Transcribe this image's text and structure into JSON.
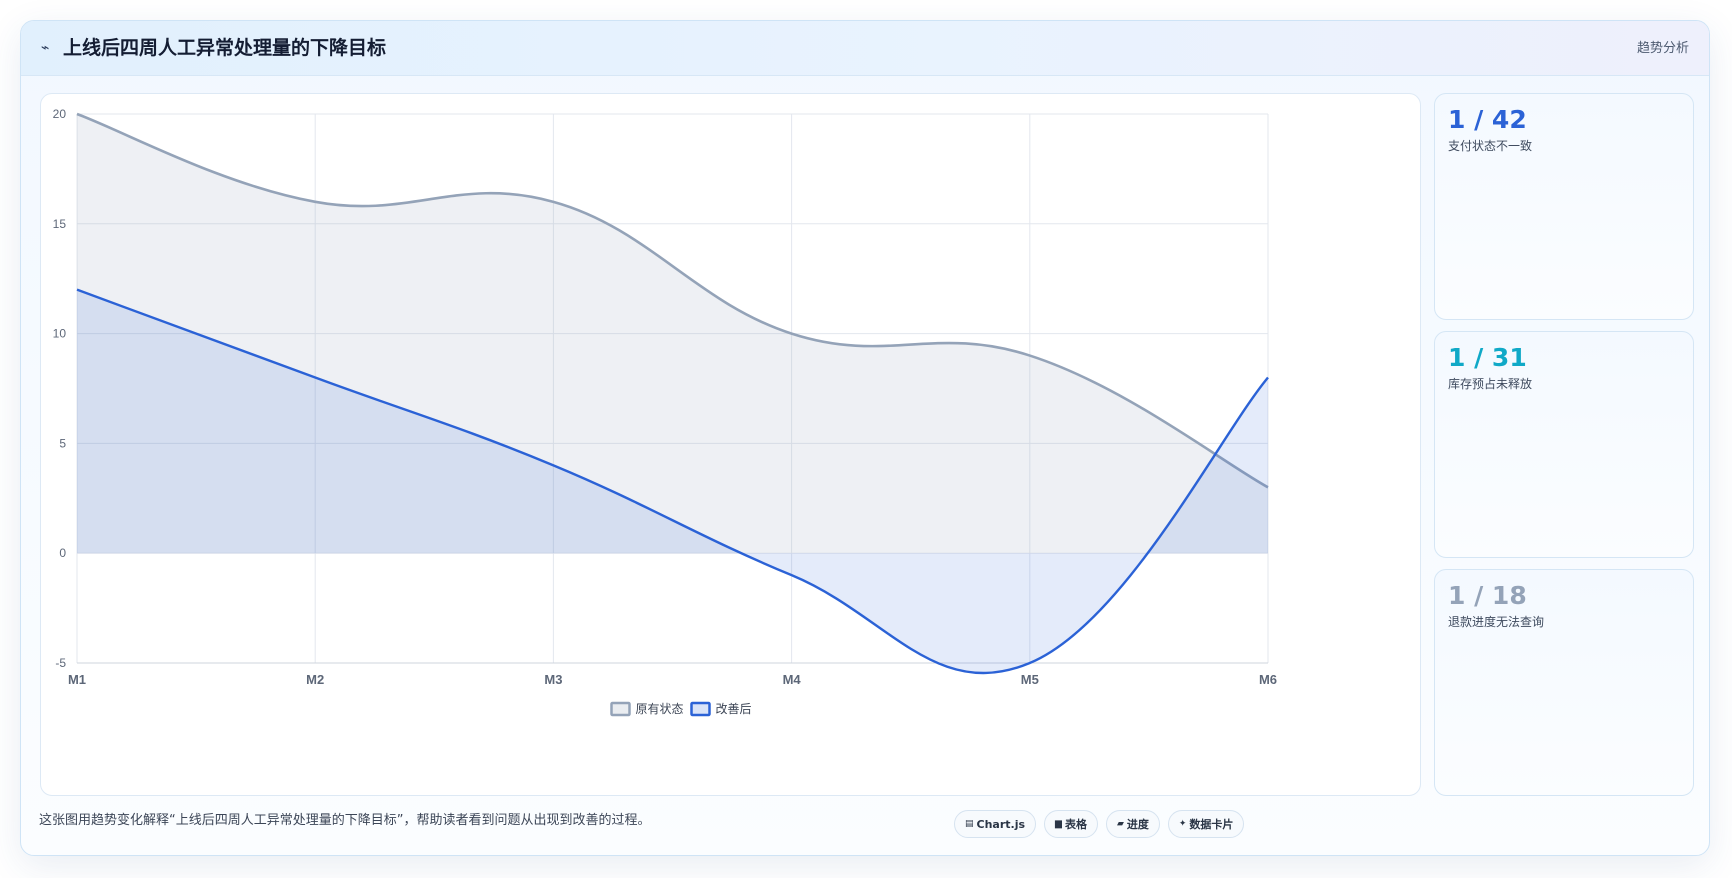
{
  "header": {
    "icon": "wave-icon",
    "title": "上线后四周人工异常处理量的下降目标",
    "tag": "趋势分析"
  },
  "chart_data": {
    "type": "area",
    "categories": [
      "M1",
      "M2",
      "M3",
      "M4",
      "M5",
      "M6"
    ],
    "series": [
      {
        "name": "原有状态",
        "values": [
          20,
          16,
          16,
          10,
          9,
          3
        ],
        "color": "#94a3b8"
      },
      {
        "name": "改善后",
        "values": [
          12,
          8,
          4,
          -1,
          -5,
          8
        ],
        "color": "#2b62d6"
      }
    ],
    "ylim": [
      -5,
      20
    ],
    "yticks": [
      20,
      15,
      10,
      5,
      0,
      -5
    ],
    "grid": true,
    "legend": "bottom"
  },
  "stats": [
    {
      "value": "1 / 42",
      "label": "支付状态不一致",
      "color": "#2b62d6"
    },
    {
      "value": "1 / 31",
      "label": "库存预占未释放",
      "color": "#10a9c7"
    },
    {
      "value": "1 / 18",
      "label": "退款进度无法查询",
      "color": "#94a3b8"
    }
  ],
  "footer": {
    "note": "这张图用趋势变化解释“上线后四周人工异常处理量的下降目标”，帮助读者看到问题从出现到改善的过程。",
    "tags": [
      {
        "icon": "chart-icon",
        "glyph": "▤",
        "label": "Chart.js"
      },
      {
        "icon": "table-icon",
        "glyph": "▆",
        "label": "表格"
      },
      {
        "icon": "progress-icon",
        "glyph": "▰",
        "label": "进度"
      },
      {
        "icon": "sparkle-icon",
        "glyph": "✦",
        "label": "数据卡片"
      }
    ]
  }
}
